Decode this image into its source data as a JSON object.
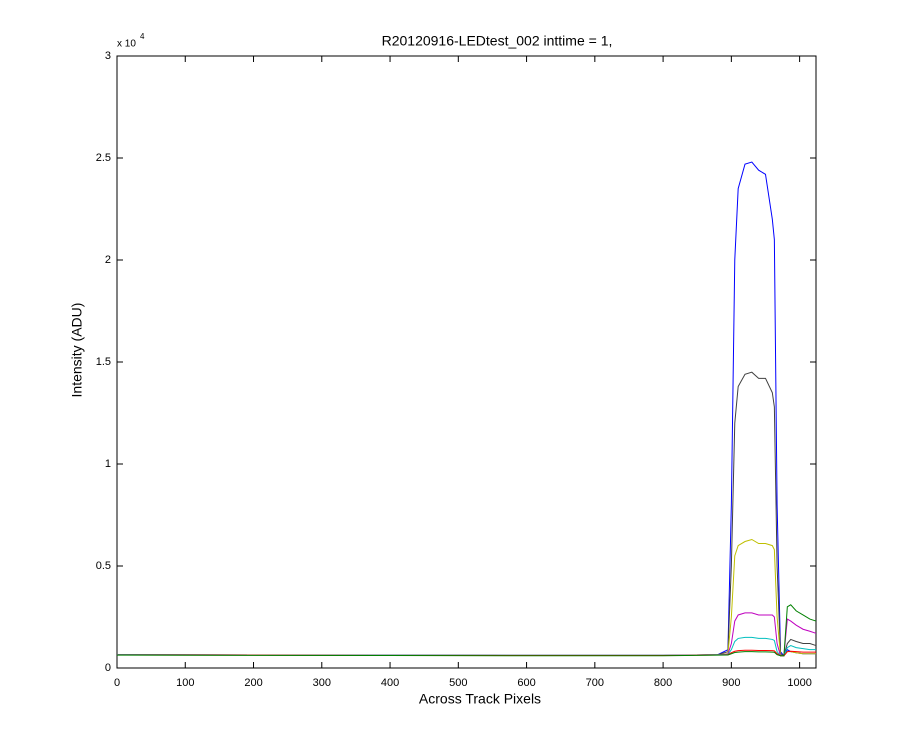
{
  "chart_data": {
    "type": "line",
    "title": "R20120916-LEDtest_002 inttime = 1,",
    "x_label": "Across Track Pixels",
    "y_label": "Intensity (ADU)",
    "y_exponent_base": "x 10",
    "y_exponent": "4",
    "xlim": [
      0,
      1024
    ],
    "ylim": [
      0,
      30000
    ],
    "xticks": [
      0,
      100,
      200,
      300,
      400,
      500,
      600,
      700,
      800,
      900,
      1000
    ],
    "yticks": [
      0,
      {
        "value": 5000,
        "label": "0.5"
      },
      {
        "value": 10000,
        "label": "1"
      },
      {
        "value": 15000,
        "label": "1.5"
      },
      {
        "value": 20000,
        "label": "2"
      },
      {
        "value": 25000,
        "label": "2.5"
      },
      {
        "value": 30000,
        "label": "3"
      }
    ],
    "grid": false,
    "x": [
      0,
      200,
      400,
      600,
      800,
      880,
      895,
      900,
      905,
      910,
      920,
      930,
      940,
      950,
      960,
      963,
      967,
      972,
      977,
      982,
      987,
      995,
      1005,
      1015,
      1024
    ],
    "series": [
      {
        "color": "#0000ff",
        "values": [
          650,
          640,
          630,
          620,
          620,
          650,
          900,
          8000,
          20000,
          23500,
          24700,
          24800,
          24400,
          24200,
          22000,
          21000,
          8000,
          800,
          600,
          900,
          800,
          750,
          700,
          700,
          700
        ]
      },
      {
        "color": "#404040",
        "values": [
          650,
          640,
          630,
          620,
          620,
          650,
          800,
          5000,
          12000,
          13800,
          14400,
          14500,
          14200,
          14200,
          13500,
          12800,
          5000,
          700,
          600,
          1200,
          1400,
          1300,
          1200,
          1200,
          1100
        ]
      },
      {
        "color": "#bfbf00",
        "values": [
          650,
          640,
          630,
          620,
          620,
          650,
          700,
          2500,
          5500,
          6000,
          6200,
          6300,
          6100,
          6100,
          6000,
          5800,
          2500,
          600,
          600,
          800,
          800,
          750,
          700,
          700,
          700
        ]
      },
      {
        "color": "#bf00bf",
        "values": [
          650,
          640,
          630,
          620,
          620,
          650,
          680,
          1200,
          2300,
          2600,
          2700,
          2700,
          2600,
          2600,
          2600,
          2500,
          1200,
          600,
          600,
          2400,
          2300,
          2100,
          1900,
          1800,
          1700
        ]
      },
      {
        "color": "#00bfbf",
        "values": [
          650,
          640,
          630,
          620,
          620,
          650,
          660,
          900,
          1300,
          1450,
          1500,
          1500,
          1450,
          1450,
          1400,
          1350,
          800,
          600,
          600,
          1000,
          1100,
          1000,
          950,
          900,
          900
        ]
      },
      {
        "color": "#ff0000",
        "values": [
          640,
          630,
          620,
          610,
          610,
          640,
          650,
          750,
          820,
          850,
          870,
          870,
          860,
          860,
          850,
          840,
          700,
          600,
          600,
          800,
          820,
          800,
          780,
          780,
          780
        ]
      },
      {
        "color": "#008000",
        "values": [
          630,
          620,
          610,
          600,
          600,
          630,
          640,
          700,
          760,
          780,
          800,
          800,
          790,
          790,
          780,
          770,
          650,
          600,
          600,
          3000,
          3100,
          2800,
          2600,
          2400,
          2300
        ]
      }
    ]
  }
}
